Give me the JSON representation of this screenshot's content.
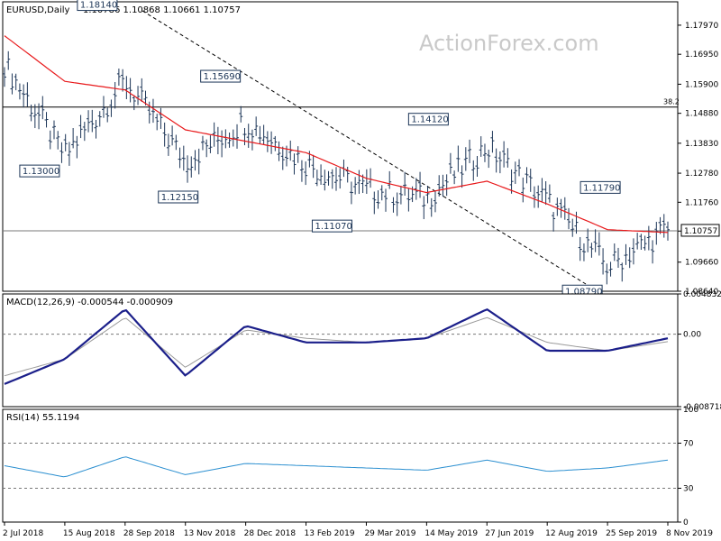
{
  "header": {
    "symbol": "EURUSD,Daily",
    "ohlc": "1.10786 1.10868 1.10661 1.10757",
    "watermark": "ActionForex.com"
  },
  "colors": {
    "candle": "#1c3557",
    "ma": "#e8191b",
    "macd": "#1b1f8a",
    "signal": "#9a9a9a",
    "rsi": "#2b8fd0",
    "axis": "#000000",
    "trendline": "#000000"
  },
  "chart_data": [
    {
      "type": "line",
      "panel": "price",
      "title": "EURUSD,Daily",
      "subtitle": "1.10786 1.10868 1.10661 1.10757",
      "x_labels": [
        "2 Jul 2018",
        "15 Aug 2018",
        "28 Sep 2018",
        "13 Nov 2018",
        "28 Dec 2018",
        "13 Feb 2019",
        "29 Mar 2019",
        "14 May 2019",
        "27 Jun 2019",
        "12 Aug 2019",
        "25 Sep 2019",
        "8 Nov 2019"
      ],
      "ylim": [
        1.0864,
        1.1879
      ],
      "y_ticks": [
        1.1797,
        1.1695,
        1.159,
        1.1488,
        1.1383,
        1.1278,
        1.1176,
        1.1075,
        1.0966,
        1.0864
      ],
      "current_price_label": "1.10757",
      "horizontal_level": {
        "value": 1.151,
        "label": "38.2"
      },
      "current_price_line": 1.1076,
      "series": [
        {
          "label": "close",
          "x": [
            "2 Jul 2018",
            "15 Aug 2018",
            "28 Sep 2018",
            "13 Nov 2018",
            "28 Dec 2018",
            "13 Feb 2019",
            "29 Mar 2019",
            "14 May 2019",
            "27 Jun 2019",
            "12 Aug 2019",
            "25 Sep 2019",
            "8 Nov 2019"
          ],
          "values": [
            1.166,
            1.134,
            1.16,
            1.132,
            1.146,
            1.131,
            1.122,
            1.119,
            1.137,
            1.118,
            1.095,
            1.108
          ]
        },
        {
          "label": "moving-average",
          "x": [
            "2 Jul 2018",
            "15 Aug 2018",
            "28 Sep 2018",
            "13 Nov 2018",
            "28 Dec 2018",
            "13 Feb 2019",
            "29 Mar 2019",
            "14 May 2019",
            "27 Jun 2019",
            "12 Aug 2019",
            "25 Sep 2019",
            "8 Nov 2019"
          ],
          "values": [
            1.176,
            1.16,
            1.157,
            1.143,
            1.139,
            1.135,
            1.126,
            1.121,
            1.125,
            1.117,
            1.108,
            1.107
          ]
        }
      ],
      "annotations": [
        {
          "label": "1.18140",
          "x": "15 Aug 2018",
          "y": 1.1814
        },
        {
          "label": "1.13000",
          "x": "15 Aug 2018",
          "y": 1.13
        },
        {
          "label": "1.15690",
          "x": "28 Dec 2018",
          "y": 1.1569
        },
        {
          "label": "1.12150",
          "x": "13 Nov 2018",
          "y": 1.1215
        },
        {
          "label": "1.11070",
          "x": "29 Mar 2019",
          "y": 1.1107
        },
        {
          "label": "1.14120",
          "x": "14 May 2019",
          "y": 1.1412
        },
        {
          "label": "1.11790",
          "x": "25 Sep 2019",
          "y": 1.1179
        },
        {
          "label": "1.08790",
          "x": "25 Sep 2019",
          "y": 1.0879
        }
      ]
    },
    {
      "type": "line",
      "panel": "macd",
      "title": "MACD(12,26,9) -0.000544 -0.000909",
      "ylim": [
        -0.008718,
        0.004832
      ],
      "y_ticks": [
        0.004832,
        0.0,
        -0.008718
      ],
      "y_tick_labels": [
        "0.004832",
        "0.00",
        "-0.008718"
      ],
      "series": [
        {
          "label": "macd",
          "values": [
            -0.006,
            -0.003,
            0.003,
            -0.005,
            0.001,
            -0.001,
            -0.001,
            -0.0005,
            0.003,
            -0.002,
            -0.002,
            -0.0005
          ]
        },
        {
          "label": "signal",
          "values": [
            -0.005,
            -0.003,
            0.002,
            -0.004,
            0.0005,
            -0.0005,
            -0.001,
            -0.0005,
            0.002,
            -0.001,
            -0.002,
            -0.0009
          ]
        }
      ]
    },
    {
      "type": "line",
      "panel": "rsi",
      "title": "RSI(14) 55.1194",
      "ylim": [
        0,
        100
      ],
      "y_ticks": [
        100,
        70,
        30,
        0
      ],
      "y_tick_labels": [
        "100",
        "70",
        "30",
        "0"
      ],
      "series": [
        {
          "label": "rsi",
          "values": [
            50,
            40,
            58,
            42,
            52,
            50,
            48,
            46,
            55,
            45,
            48,
            55
          ]
        }
      ]
    }
  ]
}
